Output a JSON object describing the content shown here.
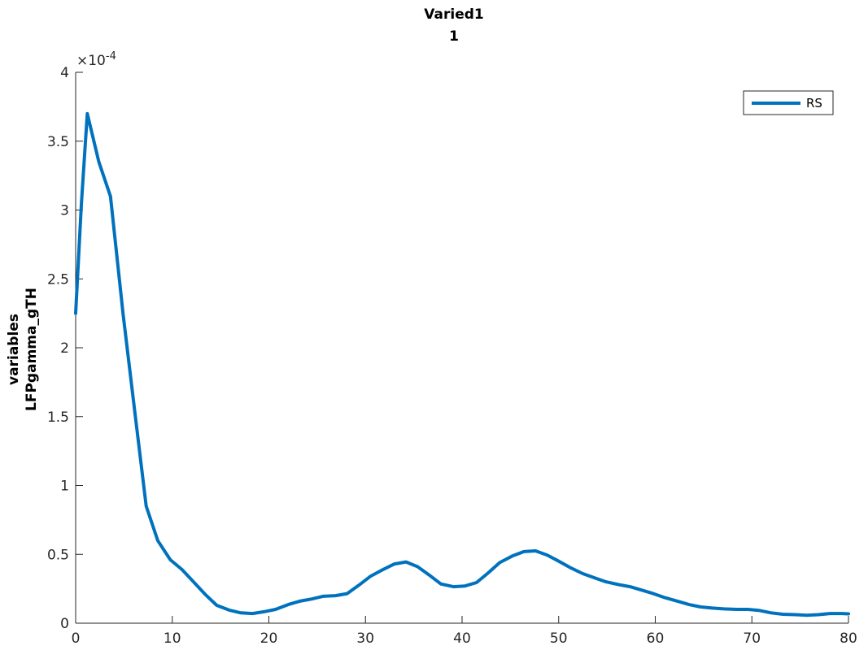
{
  "chart_data": {
    "type": "line",
    "title": [
      "Varied1",
      "1"
    ],
    "xlabel": "",
    "ylabel": [
      "variables",
      "LFPgamma_gTH"
    ],
    "xlim": [
      0,
      80
    ],
    "ylim": [
      0,
      0.0004
    ],
    "xticks": [
      0,
      10,
      20,
      30,
      40,
      50,
      60,
      70,
      80
    ],
    "yticks": [
      0,
      5e-05,
      0.0001,
      0.00015,
      0.0002,
      0.00025,
      0.0003,
      0.00035,
      0.0004
    ],
    "ytick_labels": [
      "0",
      "0.5",
      "1",
      "1.5",
      "2",
      "2.5",
      "3",
      "3.5",
      "4"
    ],
    "y_exponent": "-4",
    "y_exponent_prefix": "×10",
    "grid": false,
    "legend_position": "top-right",
    "line_color": "#0072BD",
    "series": [
      {
        "name": "RS",
        "x": [
          0,
          0.6,
          1.2,
          2.4,
          3.6,
          4.9,
          6.1,
          7.3,
          8.5,
          9.8,
          11,
          12.2,
          13.4,
          14.6,
          15.9,
          17.1,
          18.3,
          19.5,
          20.7,
          22,
          23.2,
          24.4,
          25.6,
          26.9,
          28.1,
          29.3,
          30.5,
          31.7,
          33,
          34.2,
          35.4,
          36.6,
          37.8,
          39.1,
          40.3,
          41.5,
          42.7,
          43.9,
          45.2,
          46.4,
          47.6,
          48.8,
          50,
          51.3,
          52.5,
          53.7,
          54.9,
          56.2,
          57.4,
          58.6,
          59.8,
          61,
          62.3,
          63.5,
          64.7,
          65.9,
          67.1,
          68.4,
          69.6,
          70.8,
          72,
          73.2,
          74.5,
          75.7,
          76.9,
          78.1,
          79.3,
          80
        ],
        "y": [
          0.000225,
          0.000305,
          0.00037,
          0.000335,
          0.00031,
          0.000225,
          0.000155,
          8.5e-05,
          6e-05,
          4.6e-05,
          3.9e-05,
          3e-05,
          2.1e-05,
          1.3e-05,
          9.5e-06,
          7.5e-06,
          7e-06,
          8.3e-06,
          1e-05,
          1.35e-05,
          1.6e-05,
          1.75e-05,
          1.95e-05,
          2e-05,
          2.15e-05,
          2.75e-05,
          3.4e-05,
          3.85e-05,
          4.3e-05,
          4.45e-05,
          4.1e-05,
          3.5e-05,
          2.85e-05,
          2.65e-05,
          2.7e-05,
          2.95e-05,
          3.65e-05,
          4.4e-05,
          4.88e-05,
          5.2e-05,
          5.25e-05,
          4.95e-05,
          4.5e-05,
          4e-05,
          3.6e-05,
          3.3e-05,
          3e-05,
          2.8e-05,
          2.65e-05,
          2.4e-05,
          2.15e-05,
          1.85e-05,
          1.6e-05,
          1.35e-05,
          1.18e-05,
          1.1e-05,
          1.04e-05,
          1e-05,
          1e-05,
          9.2e-06,
          7.5e-06,
          6.5e-06,
          6.2e-06,
          5.8e-06,
          6.2e-06,
          7e-06,
          7e-06,
          6.8e-06
        ]
      }
    ]
  }
}
